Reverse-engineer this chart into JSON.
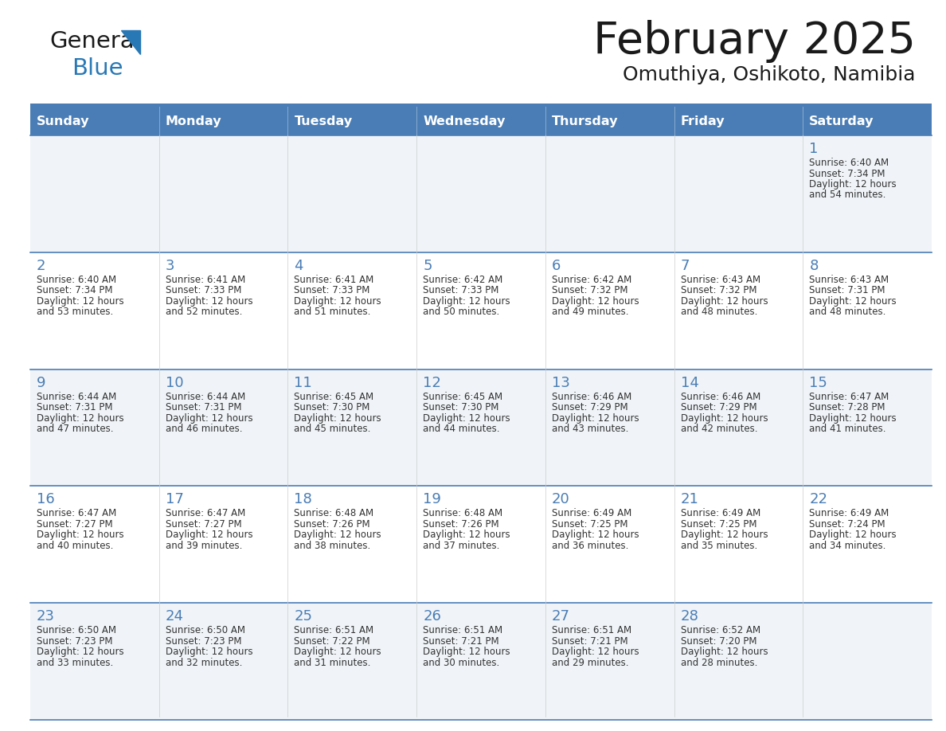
{
  "title": "February 2025",
  "subtitle": "Omuthiya, Oshikoto, Namibia",
  "header_color": "#4a7db5",
  "header_text_color": "#ffffff",
  "cell_bg_even": "#f0f4f8",
  "cell_bg_odd": "#ffffff",
  "line_color": "#4a7db5",
  "text_color": "#333333",
  "day_number_color": "#4a7db5",
  "day_headers": [
    "Sunday",
    "Monday",
    "Tuesday",
    "Wednesday",
    "Thursday",
    "Friday",
    "Saturday"
  ],
  "weeks": [
    [
      {
        "day": null,
        "info": null
      },
      {
        "day": null,
        "info": null
      },
      {
        "day": null,
        "info": null
      },
      {
        "day": null,
        "info": null
      },
      {
        "day": null,
        "info": null
      },
      {
        "day": null,
        "info": null
      },
      {
        "day": 1,
        "info": "Sunrise: 6:40 AM\nSunset: 7:34 PM\nDaylight: 12 hours\nand 54 minutes."
      }
    ],
    [
      {
        "day": 2,
        "info": "Sunrise: 6:40 AM\nSunset: 7:34 PM\nDaylight: 12 hours\nand 53 minutes."
      },
      {
        "day": 3,
        "info": "Sunrise: 6:41 AM\nSunset: 7:33 PM\nDaylight: 12 hours\nand 52 minutes."
      },
      {
        "day": 4,
        "info": "Sunrise: 6:41 AM\nSunset: 7:33 PM\nDaylight: 12 hours\nand 51 minutes."
      },
      {
        "day": 5,
        "info": "Sunrise: 6:42 AM\nSunset: 7:33 PM\nDaylight: 12 hours\nand 50 minutes."
      },
      {
        "day": 6,
        "info": "Sunrise: 6:42 AM\nSunset: 7:32 PM\nDaylight: 12 hours\nand 49 minutes."
      },
      {
        "day": 7,
        "info": "Sunrise: 6:43 AM\nSunset: 7:32 PM\nDaylight: 12 hours\nand 48 minutes."
      },
      {
        "day": 8,
        "info": "Sunrise: 6:43 AM\nSunset: 7:31 PM\nDaylight: 12 hours\nand 48 minutes."
      }
    ],
    [
      {
        "day": 9,
        "info": "Sunrise: 6:44 AM\nSunset: 7:31 PM\nDaylight: 12 hours\nand 47 minutes."
      },
      {
        "day": 10,
        "info": "Sunrise: 6:44 AM\nSunset: 7:31 PM\nDaylight: 12 hours\nand 46 minutes."
      },
      {
        "day": 11,
        "info": "Sunrise: 6:45 AM\nSunset: 7:30 PM\nDaylight: 12 hours\nand 45 minutes."
      },
      {
        "day": 12,
        "info": "Sunrise: 6:45 AM\nSunset: 7:30 PM\nDaylight: 12 hours\nand 44 minutes."
      },
      {
        "day": 13,
        "info": "Sunrise: 6:46 AM\nSunset: 7:29 PM\nDaylight: 12 hours\nand 43 minutes."
      },
      {
        "day": 14,
        "info": "Sunrise: 6:46 AM\nSunset: 7:29 PM\nDaylight: 12 hours\nand 42 minutes."
      },
      {
        "day": 15,
        "info": "Sunrise: 6:47 AM\nSunset: 7:28 PM\nDaylight: 12 hours\nand 41 minutes."
      }
    ],
    [
      {
        "day": 16,
        "info": "Sunrise: 6:47 AM\nSunset: 7:27 PM\nDaylight: 12 hours\nand 40 minutes."
      },
      {
        "day": 17,
        "info": "Sunrise: 6:47 AM\nSunset: 7:27 PM\nDaylight: 12 hours\nand 39 minutes."
      },
      {
        "day": 18,
        "info": "Sunrise: 6:48 AM\nSunset: 7:26 PM\nDaylight: 12 hours\nand 38 minutes."
      },
      {
        "day": 19,
        "info": "Sunrise: 6:48 AM\nSunset: 7:26 PM\nDaylight: 12 hours\nand 37 minutes."
      },
      {
        "day": 20,
        "info": "Sunrise: 6:49 AM\nSunset: 7:25 PM\nDaylight: 12 hours\nand 36 minutes."
      },
      {
        "day": 21,
        "info": "Sunrise: 6:49 AM\nSunset: 7:25 PM\nDaylight: 12 hours\nand 35 minutes."
      },
      {
        "day": 22,
        "info": "Sunrise: 6:49 AM\nSunset: 7:24 PM\nDaylight: 12 hours\nand 34 minutes."
      }
    ],
    [
      {
        "day": 23,
        "info": "Sunrise: 6:50 AM\nSunset: 7:23 PM\nDaylight: 12 hours\nand 33 minutes."
      },
      {
        "day": 24,
        "info": "Sunrise: 6:50 AM\nSunset: 7:23 PM\nDaylight: 12 hours\nand 32 minutes."
      },
      {
        "day": 25,
        "info": "Sunrise: 6:51 AM\nSunset: 7:22 PM\nDaylight: 12 hours\nand 31 minutes."
      },
      {
        "day": 26,
        "info": "Sunrise: 6:51 AM\nSunset: 7:21 PM\nDaylight: 12 hours\nand 30 minutes."
      },
      {
        "day": 27,
        "info": "Sunrise: 6:51 AM\nSunset: 7:21 PM\nDaylight: 12 hours\nand 29 minutes."
      },
      {
        "day": 28,
        "info": "Sunrise: 6:52 AM\nSunset: 7:20 PM\nDaylight: 12 hours\nand 28 minutes."
      },
      {
        "day": null,
        "info": null
      }
    ]
  ],
  "figsize": [
    11.88,
    9.18
  ],
  "dpi": 100
}
